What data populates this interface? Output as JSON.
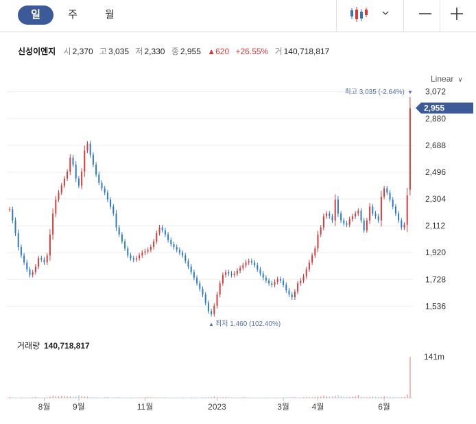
{
  "tabs": [
    {
      "label": "일",
      "active": true
    },
    {
      "label": "주",
      "active": false
    },
    {
      "label": "월",
      "active": false
    }
  ],
  "toolbar": {
    "chart_type_icon": "candlestick-icon",
    "dropdown_icon": "chevron-down-icon",
    "zoom_out_icon": "minus-icon",
    "zoom_in_icon": "plus-icon"
  },
  "info": {
    "name": "신성이엔지",
    "open_label": "시",
    "open": "2,370",
    "high_label": "고",
    "high": "3,035",
    "low_label": "저",
    "low": "2,330",
    "close_label": "종",
    "close": "2,955",
    "change": "620",
    "change_pct": "+26.55%",
    "volume_label": "거",
    "volume": "140,718,817"
  },
  "scale_label": "Linear",
  "volume_pane_label": "거래량",
  "volume_pane_value": "140,718,817",
  "colors": {
    "up": "#d63b3b",
    "down": "#2e78c8",
    "accent": "#3d5a98",
    "marker": "#5a6fa8"
  },
  "chart_data": {
    "type": "candlestick",
    "x_tick_labels": [
      "8월",
      "9월",
      "11월",
      "2023",
      "3월",
      "4월",
      "6월"
    ],
    "y_ticks": [
      1536,
      1728,
      1920,
      2112,
      2304,
      2496,
      2688,
      2880,
      3072
    ],
    "y_tick_labels": [
      "1,536",
      "1,728",
      "1,920",
      "2,112",
      "2,304",
      "2,496",
      "2,688",
      "2,880",
      "3,072"
    ],
    "ylim": [
      1420,
      3100
    ],
    "last_price": 2955,
    "last_price_label": "2,955",
    "high_marker": {
      "label": "최고 3,035 (-2.64%)",
      "value": 3035
    },
    "low_marker": {
      "label": "최저 1,460 (102.40%)",
      "value": 1460
    },
    "volume_axis_label": "141m",
    "volume_max": 141,
    "closes": [
      2230,
      2150,
      2060,
      1960,
      1900,
      1850,
      1800,
      1760,
      1780,
      1820,
      1880,
      1870,
      1850,
      1900,
      2050,
      2200,
      2300,
      2350,
      2400,
      2450,
      2500,
      2600,
      2550,
      2450,
      2400,
      2500,
      2650,
      2700,
      2620,
      2550,
      2480,
      2420,
      2380,
      2350,
      2300,
      2250,
      2200,
      2100,
      2050,
      2000,
      1950,
      1900,
      1880,
      1870,
      1880,
      1900,
      1920,
      1930,
      1940,
      1960,
      2000,
      2060,
      2100,
      2080,
      2050,
      2010,
      1980,
      1960,
      1940,
      1920,
      1900,
      1860,
      1820,
      1780,
      1740,
      1700,
      1660,
      1620,
      1560,
      1500,
      1480,
      1540,
      1620,
      1700,
      1760,
      1780,
      1770,
      1760,
      1770,
      1790,
      1810,
      1830,
      1850,
      1860,
      1850,
      1830,
      1800,
      1770,
      1740,
      1720,
      1700,
      1690,
      1710,
      1730,
      1720,
      1690,
      1650,
      1620,
      1600,
      1640,
      1700,
      1720,
      1750,
      1800,
      1850,
      1900,
      1950,
      2050,
      2100,
      2180,
      2200,
      2180,
      2150,
      2300,
      2200,
      2150,
      2130,
      2120,
      2160,
      2180,
      2200,
      2220,
      2150,
      2080,
      2150,
      2250,
      2200,
      2180,
      2150,
      2320,
      2380,
      2350,
      2300,
      2250,
      2200,
      2150,
      2100,
      2120,
      2330,
      2955
    ],
    "volumes": [
      3,
      2,
      1,
      1,
      2,
      1,
      1,
      1,
      2,
      3,
      1,
      1,
      1,
      2,
      4,
      8,
      6,
      5,
      7,
      6,
      5,
      5,
      4,
      6,
      9,
      7,
      5,
      4,
      3,
      2,
      2,
      1,
      1,
      2,
      3,
      1,
      1,
      2,
      2,
      1,
      1,
      1,
      2,
      1,
      1,
      1,
      1,
      2,
      3,
      2,
      1,
      1,
      1,
      2,
      2,
      1,
      1,
      1,
      1,
      1,
      2,
      1,
      1,
      2,
      2,
      1,
      1,
      2,
      2,
      3,
      4,
      5,
      3,
      2,
      2,
      3,
      2,
      2,
      1,
      1,
      1,
      2,
      2,
      1,
      1,
      1,
      1,
      1,
      1,
      2,
      1,
      1,
      1,
      1,
      1,
      1,
      2,
      2,
      3,
      2,
      1,
      1,
      2,
      3,
      2,
      2,
      3,
      4,
      5,
      8,
      6,
      4,
      5,
      7,
      9,
      6,
      4,
      3,
      3,
      5,
      6,
      9,
      4,
      3,
      2,
      3,
      5,
      4,
      3,
      3,
      6,
      5,
      4,
      3,
      2,
      2,
      3,
      3,
      12,
      141
    ]
  }
}
